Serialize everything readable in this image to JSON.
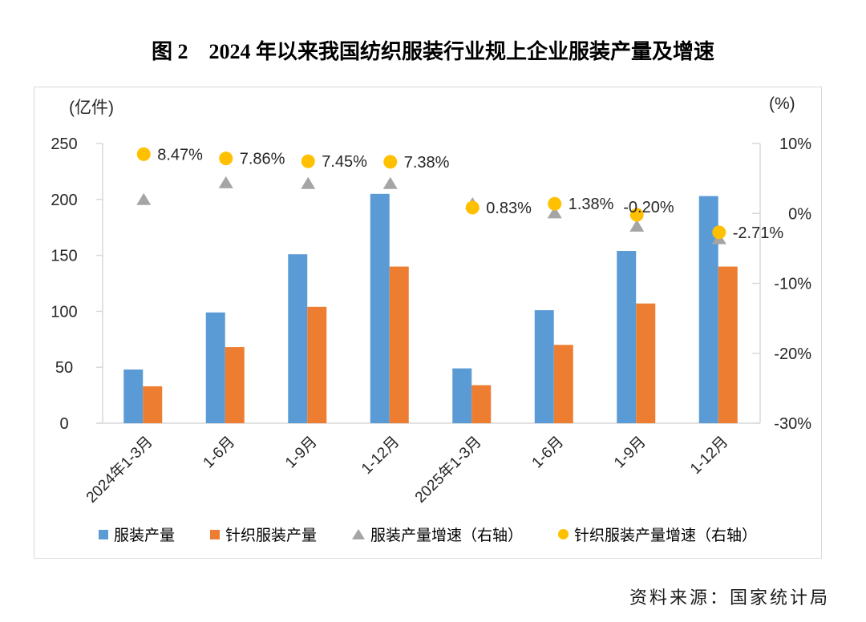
{
  "page": {
    "title": "图 2　2024 年以来我国纺织服装行业规上企业服装产量及增速",
    "source": "资料来源：国家统计局"
  },
  "colors": {
    "axis_line": "#D9D9D9",
    "text": "#262626",
    "bar_blue": "#5B9BD5",
    "bar_orange": "#ED7D31",
    "marker_gray": "#A5A5A5",
    "marker_yellow": "#FFC000"
  },
  "chart_data": {
    "type": "bar",
    "title": "图 2　2024 年以来我国纺织服装行业规上企业服装产量及增速",
    "categories": [
      "2024年1-3月",
      "1-6月",
      "1-9月",
      "1-12月",
      "2025年1-3月",
      "1-6月",
      "1-9月",
      "1-12月"
    ],
    "left_axis": {
      "title": "(亿件)",
      "min": 0,
      "max": 250,
      "step": 50,
      "tick_labels": [
        "250",
        "200",
        "150",
        "100",
        "50",
        "0"
      ]
    },
    "right_axis": {
      "title": "(%)",
      "min": -30,
      "max": 10,
      "step": 10,
      "tick_labels": [
        "10%",
        "0%",
        "-10%",
        "-20%",
        "-30%"
      ]
    },
    "grid": false,
    "legend_position": "bottom",
    "series": [
      {
        "name": "服装产量",
        "kind": "bar",
        "axis": "left",
        "color": "#5B9BD5",
        "values": [
          48,
          99,
          151,
          205,
          49,
          101,
          154,
          203
        ]
      },
      {
        "name": "针织服装产量",
        "kind": "bar",
        "axis": "left",
        "color": "#ED7D31",
        "values": [
          33,
          68,
          104,
          140,
          34,
          70,
          107,
          140
        ]
      },
      {
        "name": "服装产量增速（右轴）",
        "kind": "triangle",
        "axis": "right",
        "color": "#A5A5A5",
        "values": [
          2.0,
          4.4,
          4.3,
          4.3,
          1.4,
          0.1,
          -1.8,
          -3.6
        ]
      },
      {
        "name": "针织服装产量增速（右轴）",
        "kind": "circle",
        "axis": "right",
        "color": "#FFC000",
        "values": [
          8.47,
          7.86,
          7.45,
          7.38,
          0.83,
          1.38,
          -0.2,
          -2.71
        ],
        "point_labels": [
          "8.47%",
          "7.86%",
          "7.45%",
          "7.38%",
          "0.83%",
          "1.38%",
          "-0.20%",
          "-2.71%"
        ]
      }
    ]
  }
}
